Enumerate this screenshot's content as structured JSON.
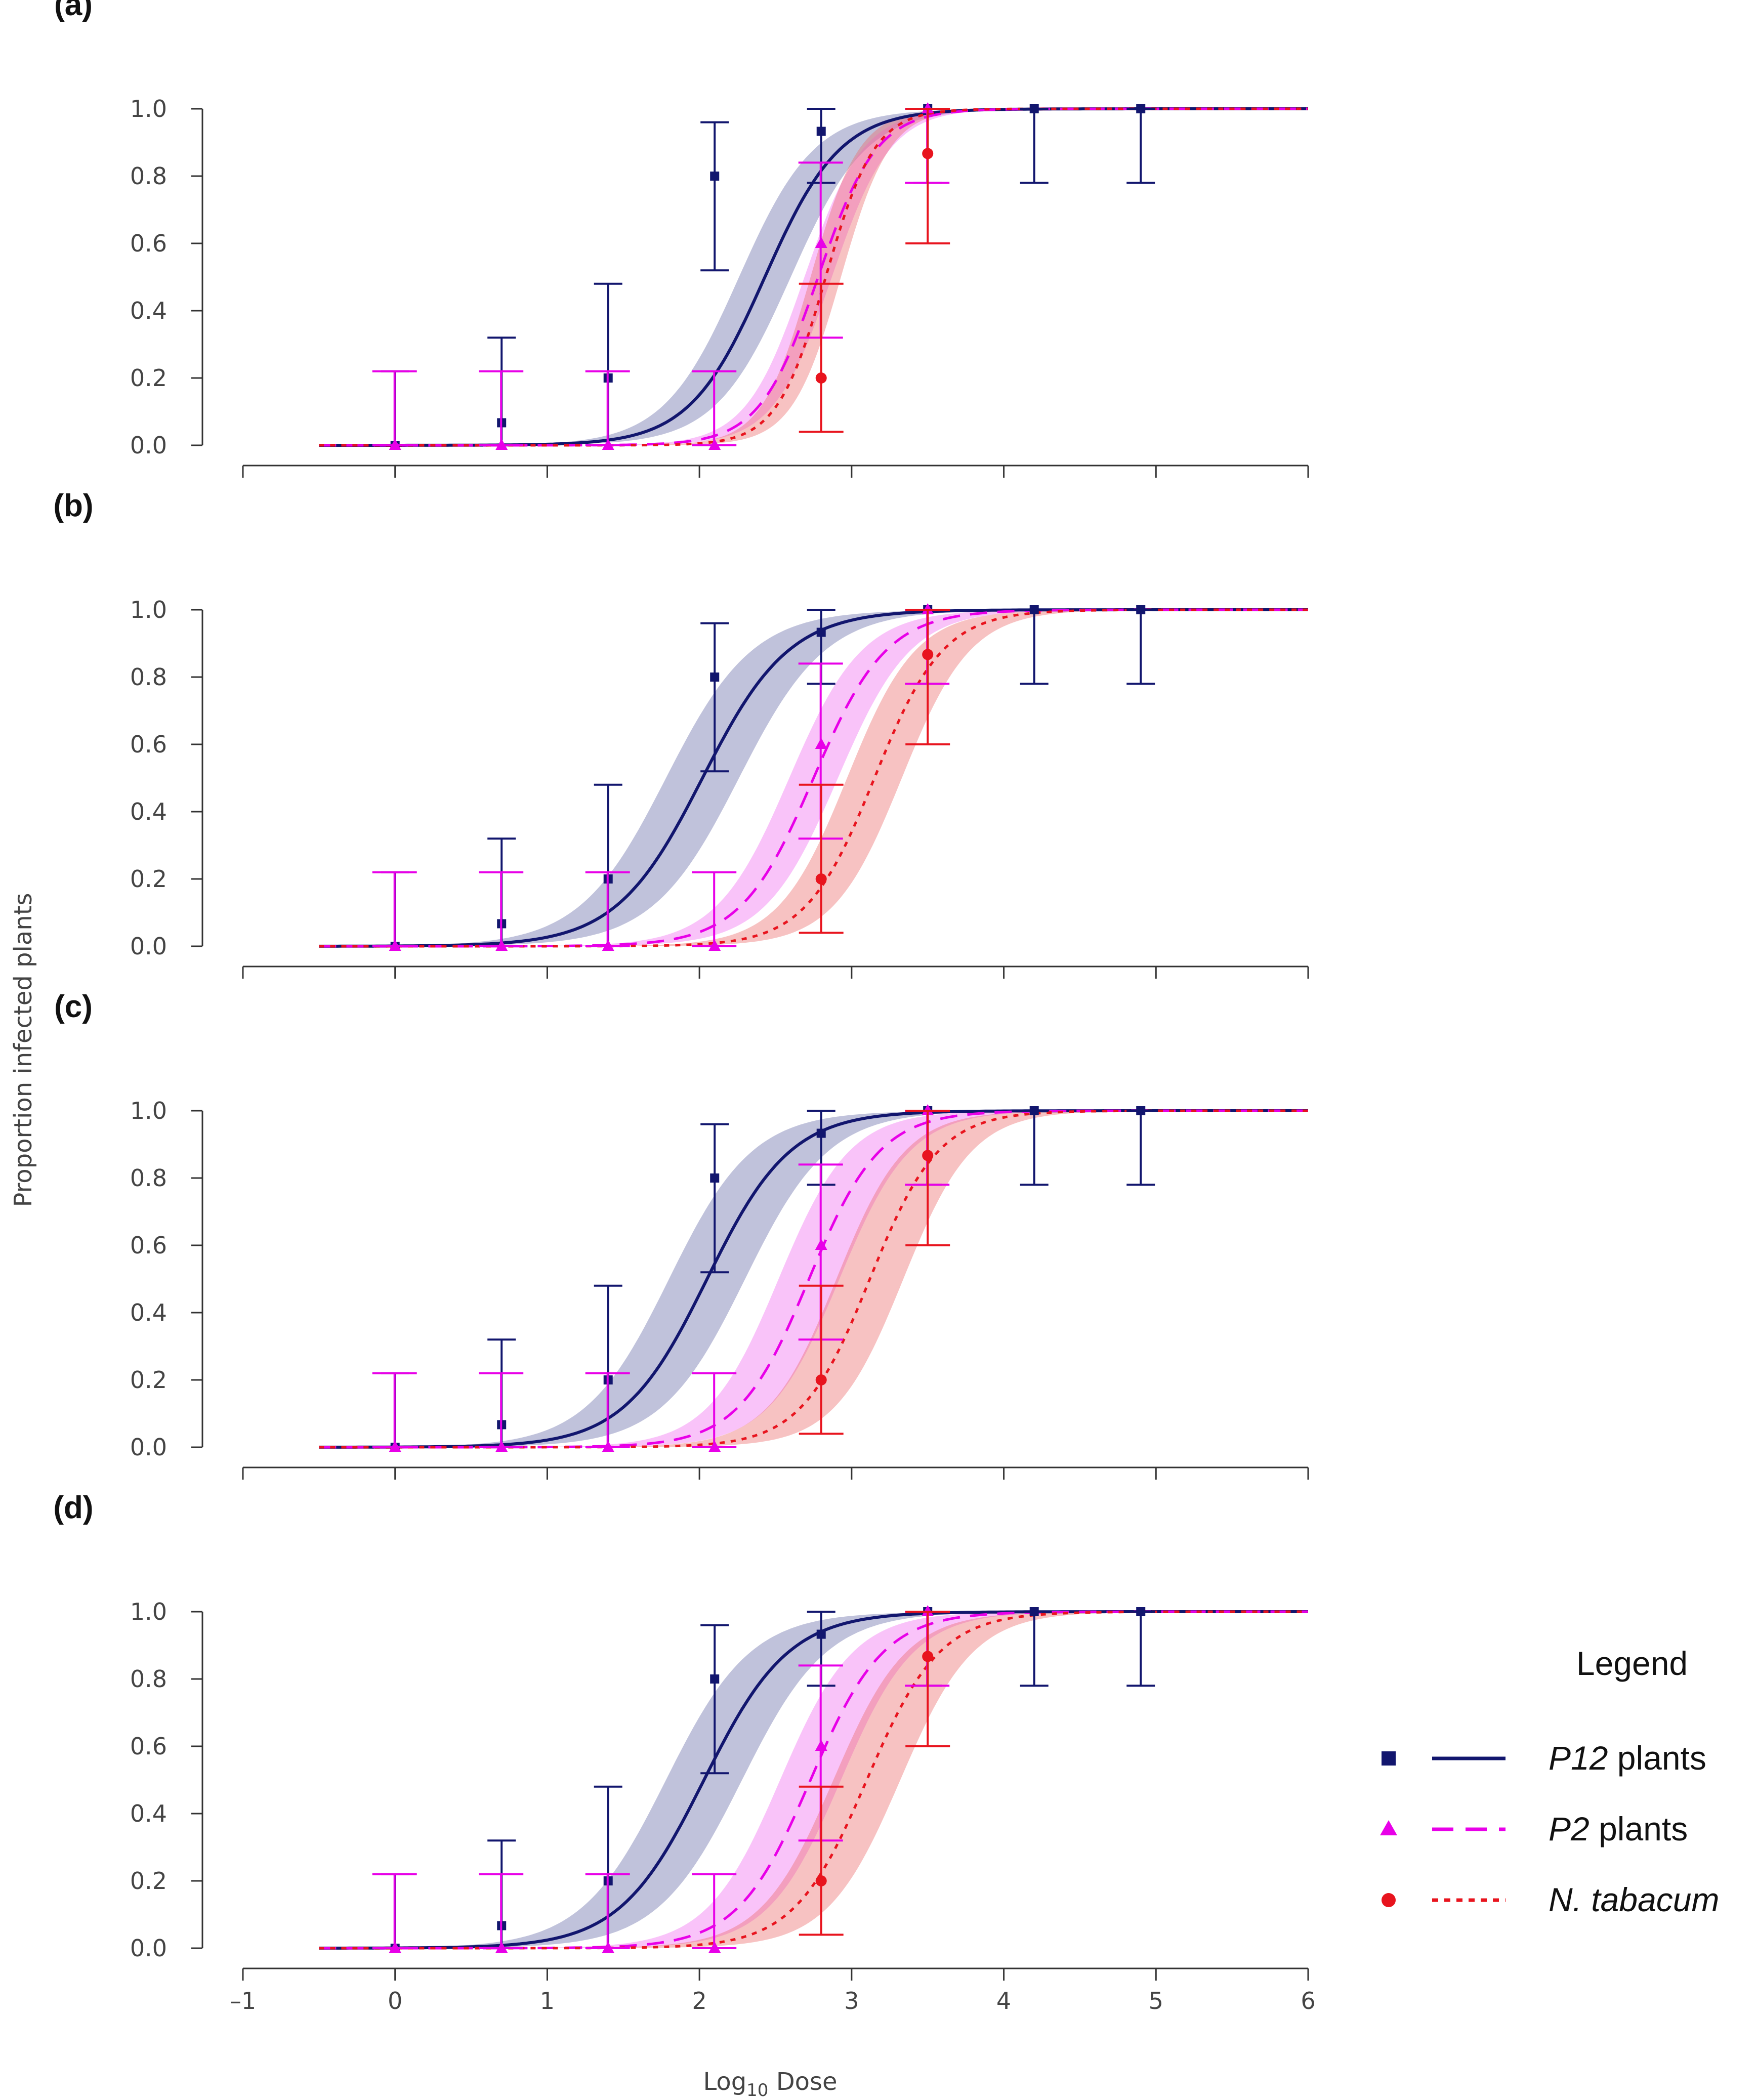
{
  "chart_data": {
    "type": "line",
    "xlabel": {
      "prefix": "Log",
      "sub": "10",
      "suffix": " Dose"
    },
    "ylabel": "Proportion infected plants",
    "xlim": [
      -1,
      6
    ],
    "ylim": [
      0,
      1
    ],
    "x_ticks": [
      -1,
      0,
      1,
      2,
      3,
      4,
      5,
      6
    ],
    "x_tick_labels": [
      "–1",
      "0",
      "1",
      "2",
      "3",
      "4",
      "5",
      "6"
    ],
    "y_ticks": [
      0,
      0.2,
      0.4,
      0.6,
      0.8,
      1.0
    ],
    "y_tick_labels": [
      "0.0",
      "0.2",
      "0.4",
      "0.6",
      "0.8",
      "1.0"
    ],
    "legend": {
      "title": "Legend",
      "entries": [
        {
          "key": "p12",
          "italic": "P12",
          "rest": " plants",
          "color": "#12166e",
          "marker": "square",
          "line": "solid"
        },
        {
          "key": "p2",
          "italic": "P2",
          "rest": " plants",
          "color": "#e800e8",
          "marker": "triangle",
          "line": "dashed"
        },
        {
          "key": "nt",
          "italic": "N. tabacum",
          "rest": "",
          "color": "#e8141e",
          "marker": "circle",
          "line": "dotted"
        }
      ]
    },
    "band_colors": {
      "p12": "#6a6eaa",
      "p2": "#f070f0",
      "nt": "#ec6e6e"
    },
    "observations": {
      "p12": {
        "x": [
          0,
          0.7,
          1.4,
          2.1,
          2.8,
          3.5,
          4.2,
          4.9
        ],
        "y": [
          0,
          0.067,
          0.2,
          0.8,
          0.933,
          1,
          1,
          1
        ],
        "lo": [
          0,
          0,
          0,
          0.52,
          0.78,
          0.78,
          0.78,
          0.78
        ],
        "hi": [
          0.22,
          0.32,
          0.48,
          0.96,
          1,
          1,
          1,
          1
        ]
      },
      "p2": {
        "x": [
          0,
          0.7,
          1.4,
          2.1,
          2.8,
          3.5
        ],
        "y": [
          0,
          0,
          0,
          0,
          0.6,
          1
        ],
        "lo": [
          0,
          0,
          0,
          0,
          0.32,
          0.78
        ],
        "hi": [
          0.22,
          0.22,
          0.22,
          0.22,
          0.84,
          1
        ]
      },
      "nt": {
        "x": [
          2.8,
          3.5
        ],
        "y": [
          0.2,
          0.867
        ],
        "lo": [
          0.04,
          0.6
        ],
        "hi": [
          0.48,
          1
        ]
      }
    },
    "panels": [
      {
        "label": "(a)",
        "fits": {
          "p12": {
            "x50": 2.43,
            "slope": 1.55,
            "band": 0.17
          },
          "p2": {
            "x50": 2.78,
            "slope": 2.0,
            "band": 0.09
          },
          "nt": {
            "x50": 2.83,
            "slope": 2.4,
            "band": 0.1
          }
        }
      },
      {
        "label": "(b)",
        "fits": {
          "p12": {
            "x50": 2.02,
            "slope": 1.35,
            "band": 0.24
          },
          "p2": {
            "x50": 2.75,
            "slope": 1.6,
            "band": 0.16
          },
          "nt": {
            "x50": 3.15,
            "slope": 1.7,
            "band": 0.18
          }
        }
      },
      {
        "label": "(c)",
        "fits": {
          "p12": {
            "x50": 2.05,
            "slope": 1.4,
            "band": 0.25
          },
          "p2": {
            "x50": 2.72,
            "slope": 1.65,
            "band": 0.2
          },
          "nt": {
            "x50": 3.12,
            "slope": 1.7,
            "band": 0.22
          }
        }
      },
      {
        "label": "(d)",
        "fits": {
          "p12": {
            "x50": 2.03,
            "slope": 1.38,
            "band": 0.25
          },
          "p2": {
            "x50": 2.73,
            "slope": 1.6,
            "band": 0.2
          },
          "nt": {
            "x50": 3.1,
            "slope": 1.6,
            "band": 0.22
          }
        }
      }
    ]
  }
}
